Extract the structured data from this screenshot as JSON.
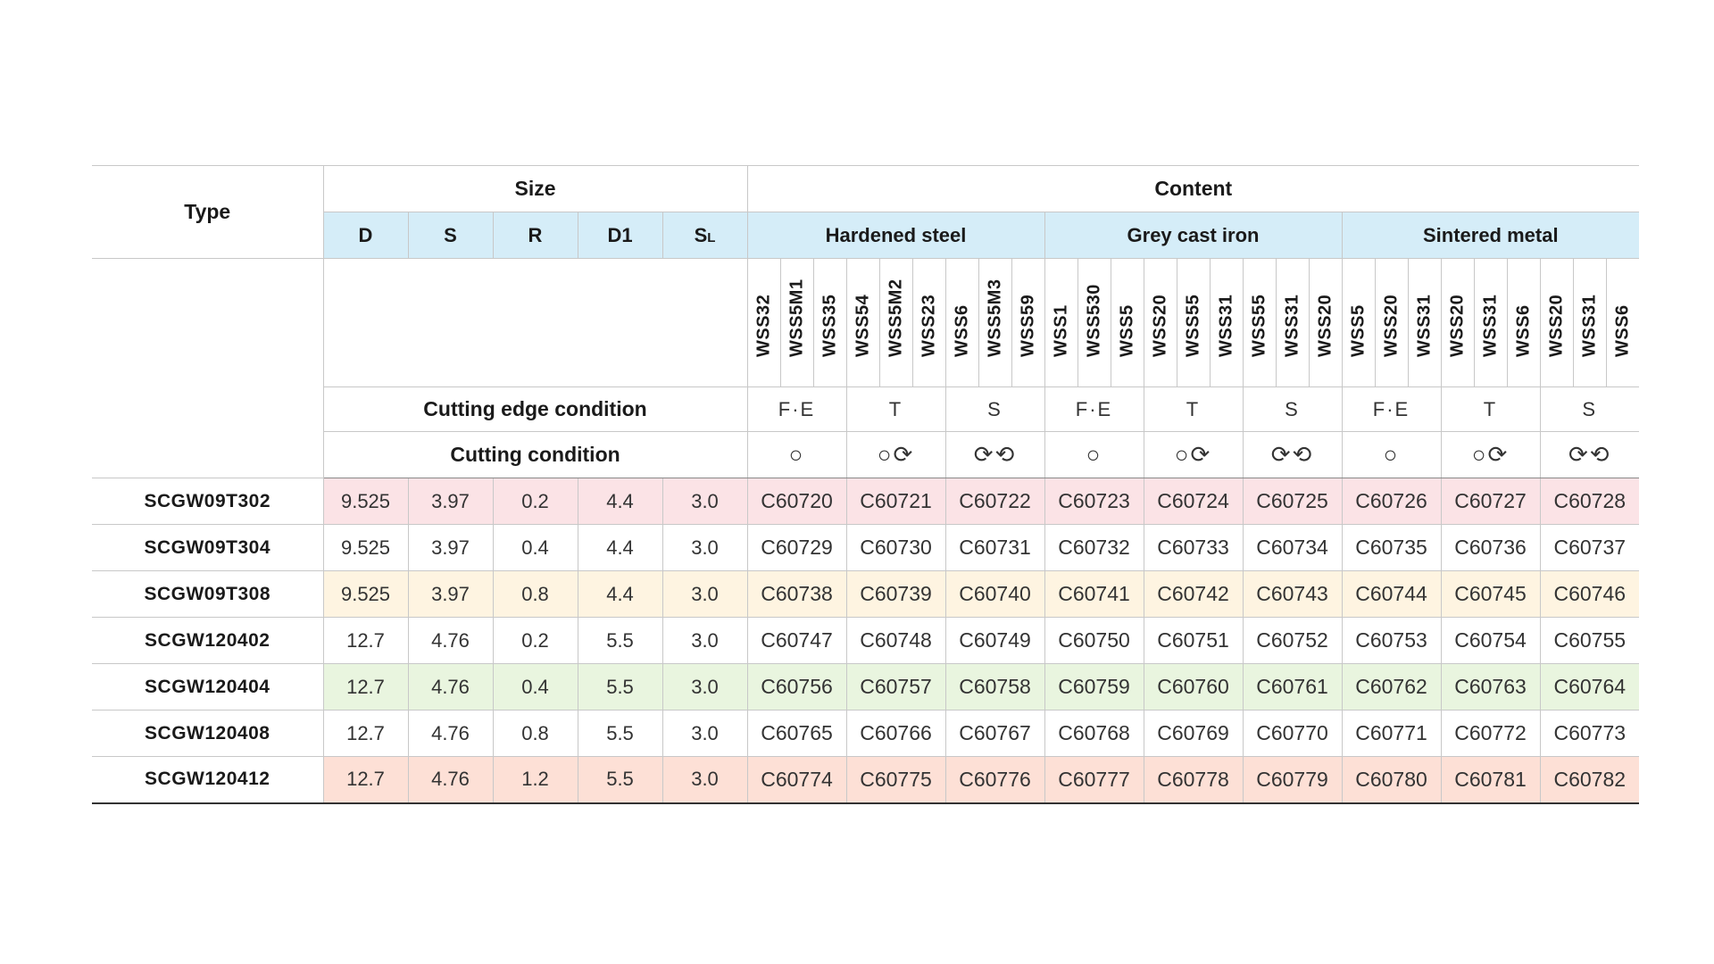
{
  "header": {
    "type_label": "Type",
    "size_label": "Size",
    "content_label": "Content",
    "size_columns": [
      "D",
      "S",
      "R",
      "D1",
      "SL"
    ],
    "size_sl_main": "S",
    "size_sl_sub": "L",
    "materials": [
      "Hardened steel",
      "Grey cast iron",
      "Sintered metal"
    ],
    "cutting_edge_condition_label": "Cutting edge condition",
    "cutting_condition_label": "Cutting condition"
  },
  "grades": [
    "WSS32",
    "WSS5M1",
    "WSS35",
    "WSS54",
    "WSS5M2",
    "WSS23",
    "WSS6",
    "WSS5M3",
    "WSS59",
    "WSS1",
    "WSS530",
    "WSS5",
    "WSS20",
    "WSS55",
    "WSS31",
    "WSS55",
    "WSS31",
    "WSS20",
    "WSS5",
    "WSS20",
    "WSS31",
    "WSS20",
    "WSS31",
    "WSS6",
    "WSS20",
    "WSS31",
    "WSS6"
  ],
  "edge_conditions": [
    "F·E",
    "T",
    "S",
    "F·E",
    "T",
    "S",
    "F·E",
    "T",
    "S"
  ],
  "cutting_conditions": [
    "○",
    "○⟳",
    "⟳⟲",
    "○",
    "○⟳",
    "⟳⟲",
    "○",
    "○⟳",
    "⟳⟲"
  ],
  "rows": [
    {
      "type": "SCGW09T302",
      "D": "9.525",
      "S": "3.97",
      "R": "0.2",
      "D1": "4.4",
      "SL": "3.0",
      "codes": [
        "C60720",
        "C60721",
        "C60722",
        "C60723",
        "C60724",
        "C60725",
        "C60726",
        "C60727",
        "C60728"
      ]
    },
    {
      "type": "SCGW09T304",
      "D": "9.525",
      "S": "3.97",
      "R": "0.4",
      "D1": "4.4",
      "SL": "3.0",
      "codes": [
        "C60729",
        "C60730",
        "C60731",
        "C60732",
        "C60733",
        "C60734",
        "C60735",
        "C60736",
        "C60737"
      ]
    },
    {
      "type": "SCGW09T308",
      "D": "9.525",
      "S": "3.97",
      "R": "0.8",
      "D1": "4.4",
      "SL": "3.0",
      "codes": [
        "C60738",
        "C60739",
        "C60740",
        "C60741",
        "C60742",
        "C60743",
        "C60744",
        "C60745",
        "C60746"
      ]
    },
    {
      "type": "SCGW120402",
      "D": "12.7",
      "S": "4.76",
      "R": "0.2",
      "D1": "5.5",
      "SL": "3.0",
      "codes": [
        "C60747",
        "C60748",
        "C60749",
        "C60750",
        "C60751",
        "C60752",
        "C60753",
        "C60754",
        "C60755"
      ]
    },
    {
      "type": "SCGW120404",
      "D": "12.7",
      "S": "4.76",
      "R": "0.4",
      "D1": "5.5",
      "SL": "3.0",
      "codes": [
        "C60756",
        "C60757",
        "C60758",
        "C60759",
        "C60760",
        "C60761",
        "C60762",
        "C60763",
        "C60764"
      ]
    },
    {
      "type": "SCGW120408",
      "D": "12.7",
      "S": "4.76",
      "R": "0.8",
      "D1": "5.5",
      "SL": "3.0",
      "codes": [
        "C60765",
        "C60766",
        "C60767",
        "C60768",
        "C60769",
        "C60770",
        "C60771",
        "C60772",
        "C60773"
      ]
    },
    {
      "type": "SCGW120412",
      "D": "12.7",
      "S": "4.76",
      "R": "1.2",
      "D1": "5.5",
      "SL": "3.0",
      "codes": [
        "C60774",
        "C60775",
        "C60776",
        "C60777",
        "C60778",
        "C60779",
        "C60780",
        "C60781",
        "C60782"
      ]
    }
  ],
  "row_colors": [
    "#fbe3e6",
    "#ffffff",
    "#fef4e1",
    "#ffffff",
    "#e9f5df",
    "#ffffff",
    "#fde0d6"
  ]
}
